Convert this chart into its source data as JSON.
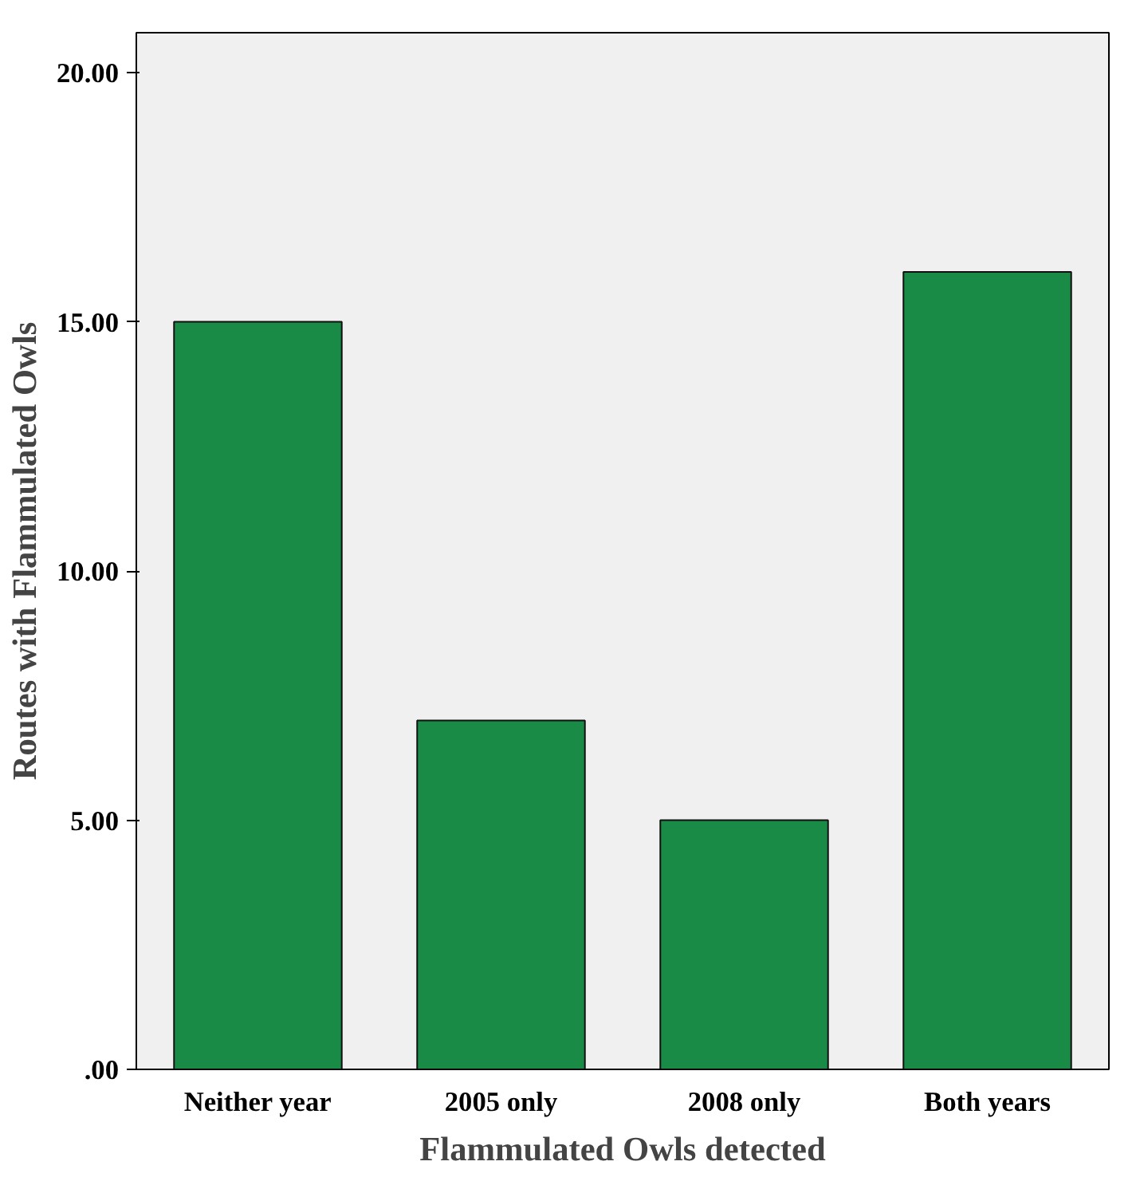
{
  "chart_data": {
    "type": "bar",
    "xlabel": "Flammulated Owls detected",
    "ylabel": "Routes with Flammulated Owls",
    "categories": [
      "Neither year",
      "2005 only",
      "2008 only",
      "Both years"
    ],
    "values": [
      15,
      7,
      5,
      16
    ],
    "color": "#1a8a47",
    "ylim": [
      0,
      20.8
    ],
    "yticks": [
      {
        "value": 0,
        "label": ".00"
      },
      {
        "value": 5,
        "label": "5.00"
      },
      {
        "value": 10,
        "label": "10.00"
      },
      {
        "value": 15,
        "label": "15.00"
      },
      {
        "value": 20,
        "label": "20.00"
      }
    ],
    "grid": false
  }
}
